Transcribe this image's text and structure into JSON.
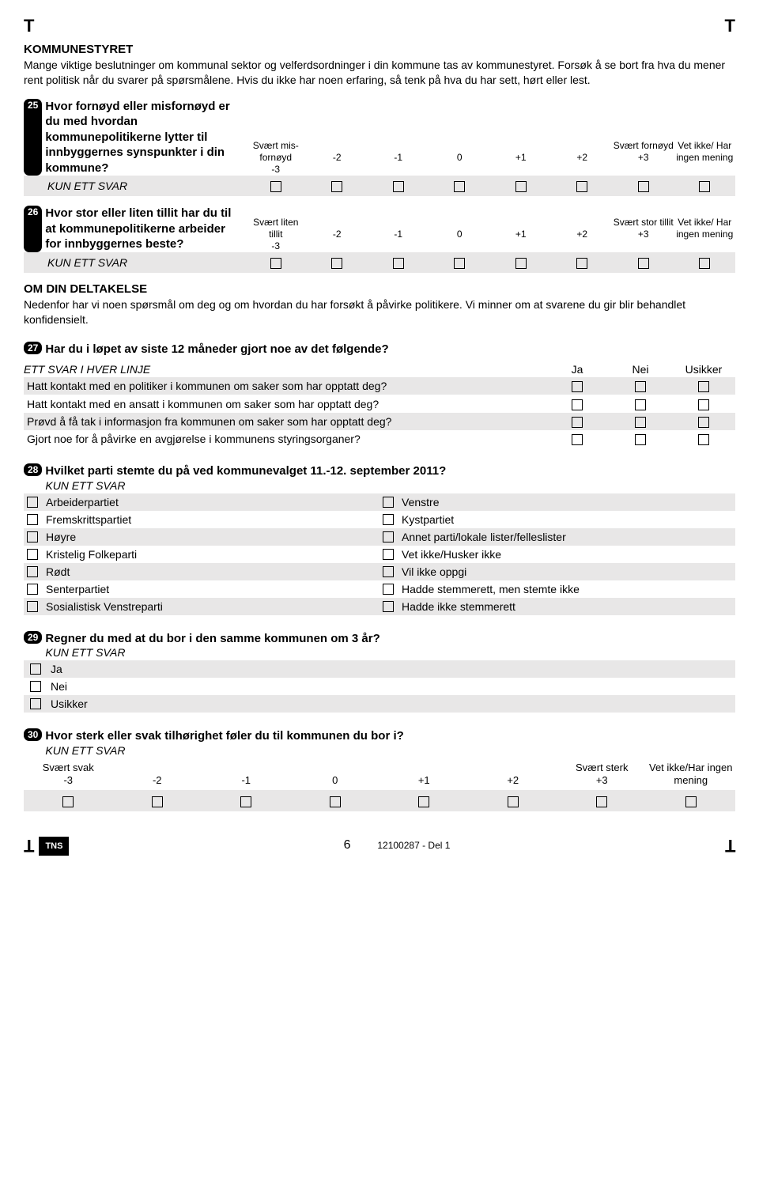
{
  "colors": {
    "stripe": "#e8e7e7",
    "text": "#000000",
    "bg": "#ffffff"
  },
  "cropmark": "T",
  "section1": {
    "title": "KOMMUNESTYRET",
    "intro": "Mange viktige beslutninger om kommunal sektor og velferdsordninger i din kommune tas av kommunestyret. Forsøk å se bort fra hva du mener rent politisk når du svarer på spørsmålene. Hvis du ikke har noen erfaring, så tenk på hva du har sett, hørt eller lest."
  },
  "q25": {
    "num": "25",
    "text": "Hvor fornøyd eller misfornøyd er du med hvordan kommunepolitikerne lytter til innbyggernes synspunkter i din kommune?",
    "left_label": "Svært mis- fornøyd",
    "right_label": "Svært fornøyd",
    "na_label": "Vet ikke/ Har ingen mening",
    "scale": [
      "-3",
      "-2",
      "-1",
      "0",
      "+1",
      "+2",
      "+3"
    ],
    "kun": "KUN ETT SVAR"
  },
  "q26": {
    "num": "26",
    "text": "Hvor stor eller liten tillit har du til at kommunepolitikerne arbeider for innbyggernes beste?",
    "left_label": "Svært liten tillit",
    "right_label": "Svært stor tillit",
    "na_label": "Vet ikke/ Har ingen mening",
    "scale": [
      "-3",
      "-2",
      "-1",
      "0",
      "+1",
      "+2",
      "+3"
    ],
    "kun": "KUN ETT SVAR"
  },
  "section2": {
    "title": "OM DIN DELTAKELSE",
    "intro": "Nedenfor har vi noen spørsmål om deg og om hvordan du har forsøkt å påvirke politikere. Vi minner om at svarene du gir blir behandlet konfidensielt."
  },
  "q27": {
    "num": "27",
    "text": "Har du i løpet av siste 12 måneder gjort noe av det følgende?",
    "hint": "ETT SVAR I HVER LINJE",
    "cols": [
      "Ja",
      "Nei",
      "Usikker"
    ],
    "rows": [
      "Hatt kontakt med en politiker i kommunen om saker som har opptatt deg?",
      "Hatt kontakt med en ansatt i kommunen om saker som har opptatt deg?",
      "Prøvd å få tak i informasjon fra kommunen om saker som har opptatt deg?",
      "Gjort noe for å påvirke en avgjørelse i kommunens styringsorganer?"
    ]
  },
  "q28": {
    "num": "28",
    "text": "Hvilket parti stemte du på ved kommunevalget 11.-12. september 2011?",
    "kun": "KUN ETT SVAR",
    "left": [
      "Arbeiderpartiet",
      "Fremskrittspartiet",
      "Høyre",
      "Kristelig Folkeparti",
      "Rødt",
      "Senterpartiet",
      "Sosialistisk Venstreparti"
    ],
    "right": [
      "Venstre",
      "Kystpartiet",
      "Annet parti/lokale lister/felleslister",
      "Vet ikke/Husker ikke",
      "Vil ikke oppgi",
      "Hadde stemmerett, men stemte ikke",
      "Hadde ikke stemmerett"
    ]
  },
  "q29": {
    "num": "29",
    "text": "Regner du med at du bor i den samme kommunen om 3 år?",
    "kun": "KUN ETT SVAR",
    "options": [
      "Ja",
      "Nei",
      "Usikker"
    ]
  },
  "q30": {
    "num": "30",
    "text": "Hvor sterk eller svak tilhørighet føler du til kommunen du bor i?",
    "kun": "KUN ETT SVAR",
    "left_label": "Svært svak",
    "right_label": "Svært sterk",
    "na_label": "Vet ikke/Har ingen mening",
    "scale": [
      "-3",
      "-2",
      "-1",
      "0",
      "+1",
      "+2",
      "+3"
    ]
  },
  "footer": {
    "page": "6",
    "id": "12100287 - Del 1",
    "logo": "TNS"
  }
}
